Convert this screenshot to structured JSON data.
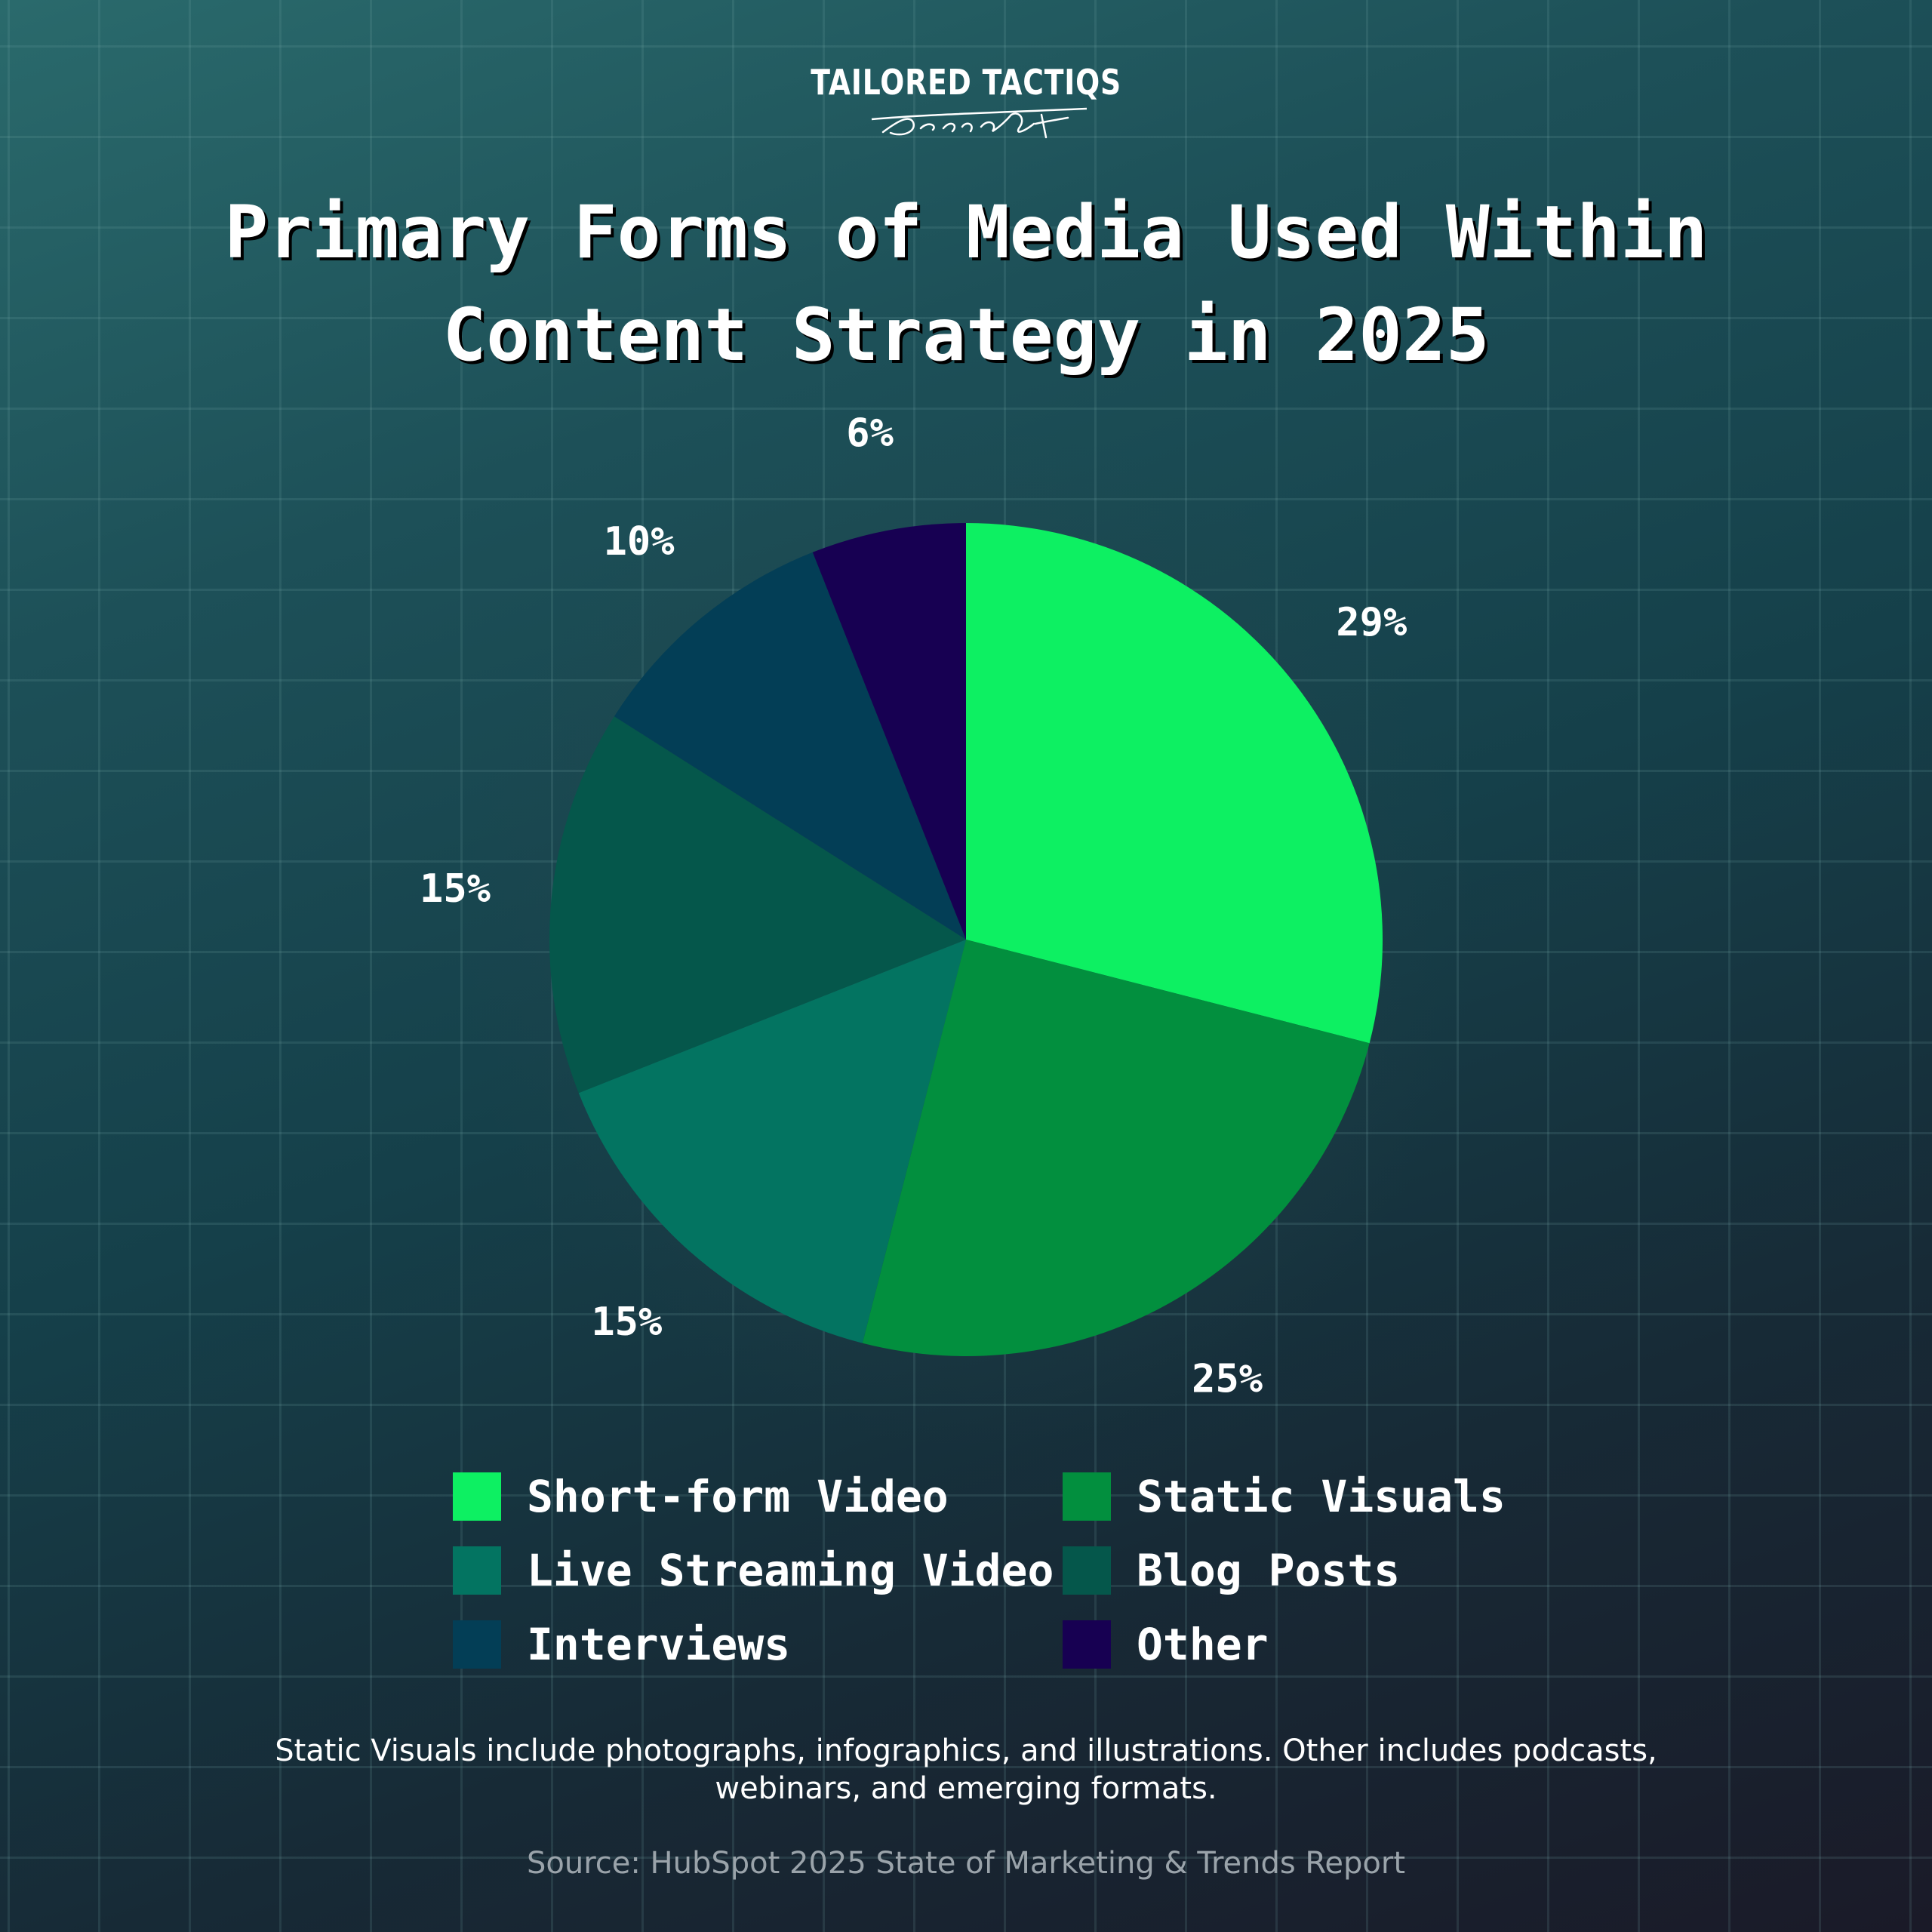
{
  "logo": {
    "brand": "TAILORED TACTIQS",
    "signature": "Dennis Quast"
  },
  "chart_data": {
    "type": "pie",
    "title_lines": [
      "Primary Forms of Media Used Within",
      "Content Strategy in 2025"
    ],
    "slices": [
      {
        "name": "Short-form Video",
        "value": 29,
        "label": "29%",
        "color": "#0df062"
      },
      {
        "name": "Static Visuals",
        "value": 25,
        "label": "25%",
        "color": "#028f3e"
      },
      {
        "name": "Live Streaming Video",
        "value": 15,
        "label": "15%",
        "color": "#037461"
      },
      {
        "name": "Blog Posts",
        "value": 15,
        "label": "15%",
        "color": "#05574b"
      },
      {
        "name": "Interviews",
        "value": 10,
        "label": "10%",
        "color": "#033e56"
      },
      {
        "name": "Other",
        "value": 6,
        "label": "6%",
        "color": "#170052"
      }
    ],
    "legend_placement": "bottom"
  },
  "footnote": "Static Visuals include photographs, infographics, and illustrations. Other includes podcasts, webinars, and emerging formats.",
  "source": "Source: HubSpot 2025 State of Marketing & Trends Report"
}
